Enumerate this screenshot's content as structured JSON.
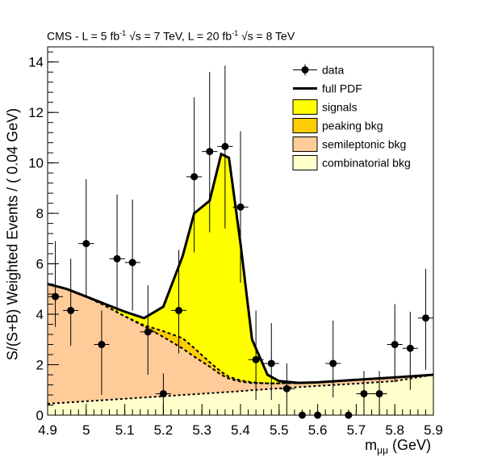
{
  "title": {
    "prefix": "CMS - L = 5 fb",
    "exp1": "-1",
    "mid1": " √s = 7 TeV, L = 20 fb",
    "exp2": "-1",
    "mid2": " √s = 8 TeV"
  },
  "axes": {
    "ylabel": "S/(S+B) Weighted Events / ( 0.04 GeV)",
    "xlabel_main": "m",
    "xlabel_sub": "μμ",
    "xlabel_unit": " (GeV)"
  },
  "chart_data": {
    "type": "area",
    "xlim": [
      4.9,
      5.9
    ],
    "ylim": [
      0,
      14.6
    ],
    "x_ticks": [
      "4.9",
      "5",
      "5.1",
      "5.2",
      "5.3",
      "5.4",
      "5.5",
      "5.6",
      "5.7",
      "5.8",
      "5.9"
    ],
    "y_ticks": [
      "0",
      "2",
      "4",
      "6",
      "8",
      "10",
      "12",
      "14"
    ],
    "legend": {
      "position": "top-right",
      "entries": [
        "data",
        "full PDF",
        "signals",
        "peaking bkg",
        "semileptonic bkg",
        "combinatorial bkg"
      ]
    },
    "colors": {
      "signals": "#ffff00",
      "peaking": "#ffcc00",
      "semileptonic": "#ffcc99",
      "combinatorial": "#ffffcc",
      "line": "#000000"
    },
    "data": [
      {
        "x": 4.92,
        "y": 4.7,
        "yerr_low": 1.2,
        "yerr_high": 2.2
      },
      {
        "x": 4.96,
        "y": 4.15,
        "yerr_low": 1.4,
        "yerr_high": 2.05
      },
      {
        "x": 5.0,
        "y": 6.8,
        "yerr_low": 2.1,
        "yerr_high": 2.55
      },
      {
        "x": 5.04,
        "y": 2.8,
        "yerr_low": 2.0,
        "yerr_high": 1.35
      },
      {
        "x": 5.08,
        "y": 6.2,
        "yerr_low": 2.15,
        "yerr_high": 2.55
      },
      {
        "x": 5.12,
        "y": 6.05,
        "yerr_low": 1.9,
        "yerr_high": 2.5
      },
      {
        "x": 5.16,
        "y": 3.3,
        "yerr_low": 1.7,
        "yerr_high": 1.85
      },
      {
        "x": 5.2,
        "y": 0.85,
        "yerr_low": 0.85,
        "yerr_high": 0.8
      },
      {
        "x": 5.24,
        "y": 4.15,
        "yerr_low": 1.7,
        "yerr_high": 2.4
      },
      {
        "x": 5.28,
        "y": 9.45,
        "yerr_low": 3.0,
        "yerr_high": 3.15
      },
      {
        "x": 5.32,
        "y": 10.45,
        "yerr_low": 3.2,
        "yerr_high": 3.15
      },
      {
        "x": 5.36,
        "y": 10.65,
        "yerr_low": 3.25,
        "yerr_high": 3.2
      },
      {
        "x": 5.4,
        "y": 8.25,
        "yerr_low": 3.0,
        "yerr_high": 3.0
      },
      {
        "x": 5.44,
        "y": 2.2,
        "yerr_low": 1.6,
        "yerr_high": 1.95
      },
      {
        "x": 5.48,
        "y": 2.05,
        "yerr_low": 1.45,
        "yerr_high": 1.6
      },
      {
        "x": 5.52,
        "y": 1.05,
        "yerr_low": 0.85,
        "yerr_high": 1.0
      },
      {
        "x": 5.56,
        "y": 0.0,
        "yerr_low": 0.0,
        "yerr_high": 0.0
      },
      {
        "x": 5.6,
        "y": 0.0,
        "yerr_low": 0.0,
        "yerr_high": 0.0
      },
      {
        "x": 5.64,
        "y": 2.05,
        "yerr_low": 1.35,
        "yerr_high": 1.7
      },
      {
        "x": 5.68,
        "y": 0.0,
        "yerr_low": 0.0,
        "yerr_high": 0.0
      },
      {
        "x": 5.72,
        "y": 0.85,
        "yerr_low": 0.85,
        "yerr_high": 0.9
      },
      {
        "x": 5.76,
        "y": 0.85,
        "yerr_low": 0.85,
        "yerr_high": 0.9
      },
      {
        "x": 5.8,
        "y": 2.8,
        "yerr_low": 1.5,
        "yerr_high": 1.6
      },
      {
        "x": 5.84,
        "y": 2.65,
        "yerr_low": 1.65,
        "yerr_high": 1.45
      },
      {
        "x": 5.88,
        "y": 3.85,
        "yerr_low": 2.05,
        "yerr_high": 1.95
      }
    ],
    "curve_x": [
      4.9,
      4.95,
      5.0,
      5.05,
      5.1,
      5.15,
      5.2,
      5.25,
      5.28,
      5.32,
      5.35,
      5.37,
      5.4,
      5.43,
      5.47,
      5.5,
      5.55,
      5.6,
      5.7,
      5.8,
      5.9
    ],
    "full_pdf": [
      5.2,
      5.0,
      4.7,
      4.4,
      4.1,
      3.85,
      4.3,
      6.3,
      8.0,
      8.5,
      10.35,
      10.2,
      6.8,
      3.0,
      1.6,
      1.35,
      1.28,
      1.3,
      1.4,
      1.5,
      1.6
    ],
    "peaking_top": [
      5.2,
      5.0,
      4.7,
      4.33,
      3.92,
      3.56,
      3.33,
      3.05,
      2.66,
      2.1,
      1.72,
      1.52,
      1.38,
      1.3,
      1.26,
      1.26,
      1.27,
      1.3,
      1.4,
      1.5,
      1.6
    ],
    "semileptonic_top": [
      5.2,
      5.0,
      4.7,
      4.33,
      3.92,
      3.52,
      3.1,
      2.64,
      2.32,
      1.92,
      1.6,
      1.45,
      1.33,
      1.27,
      1.26,
      1.26,
      1.27,
      1.3,
      1.4,
      1.5,
      1.6
    ],
    "combinatorial": [
      0.45,
      0.5,
      0.55,
      0.6,
      0.65,
      0.7,
      0.75,
      0.8,
      0.83,
      0.87,
      0.9,
      0.92,
      0.95,
      0.99,
      1.03,
      1.06,
      1.11,
      1.16,
      1.25,
      1.35,
      1.6
    ]
  }
}
